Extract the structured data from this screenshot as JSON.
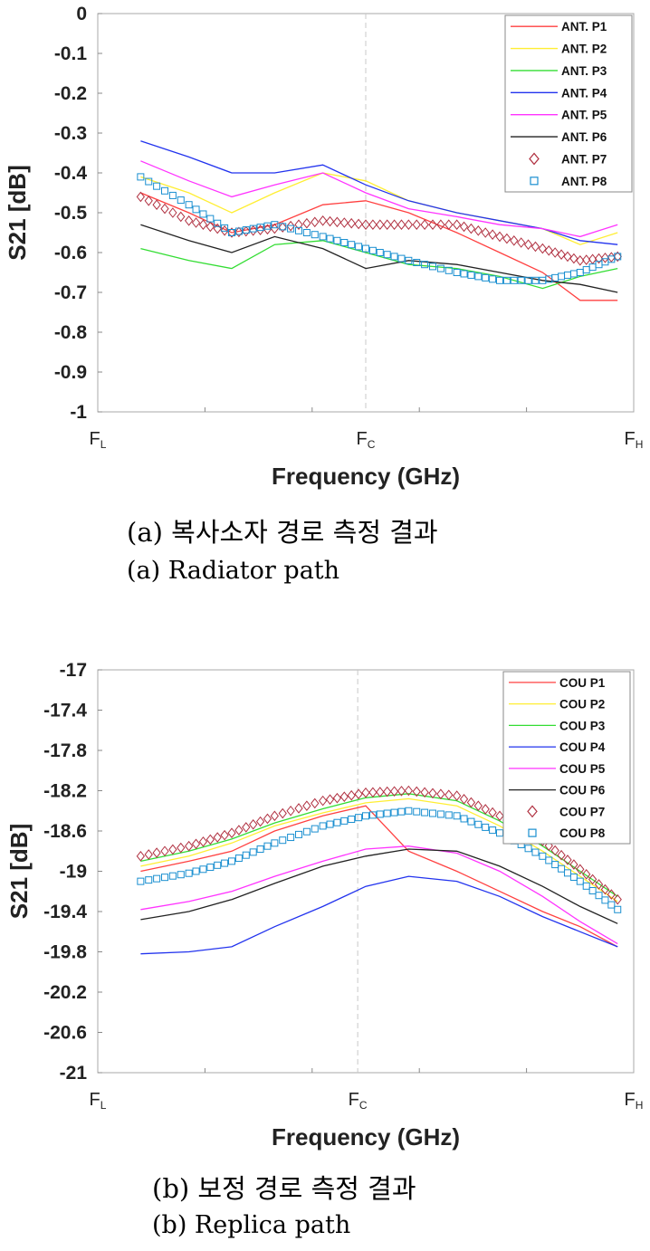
{
  "captions": {
    "a_korean": "(a)  복사소자  경로  측정  결과",
    "a_english": "(a)  Radiator  path",
    "b_korean": "(b)  보정  경로  측정  결과",
    "b_english": "(b)  Replica  path"
  },
  "chart_data": [
    {
      "type": "line",
      "title": "",
      "xlabel": "Frequency (GHz)",
      "ylabel": "S21 [dB]",
      "xticks": [
        {
          "main": "F",
          "sub": "L"
        },
        {
          "main": "F",
          "sub": "C"
        },
        {
          "main": "F",
          "sub": "H"
        }
      ],
      "x": [
        0.08,
        0.17,
        0.25,
        0.33,
        0.42,
        0.5,
        0.58,
        0.67,
        0.75,
        0.83,
        0.9,
        0.97
      ],
      "xlim": [
        0,
        1
      ],
      "ylim": [
        -1,
        0
      ],
      "yticks": [
        "0",
        "-0.1",
        "-0.2",
        "-0.3",
        "-0.4",
        "-0.5",
        "-0.6",
        "-0.7",
        "-0.8",
        "-0.9",
        "-1"
      ],
      "ytick_values": [
        0,
        -0.1,
        -0.2,
        -0.3,
        -0.4,
        -0.5,
        -0.6,
        -0.7,
        -0.8,
        -0.9,
        -1
      ],
      "grid": "vertical dashed at Fc",
      "fc_x": 0.5,
      "legend_position": "top-right",
      "series": [
        {
          "name": "ANT. P1",
          "color": "#ff4040",
          "marker": "none",
          "values": [
            -0.45,
            -0.5,
            -0.55,
            -0.53,
            -0.48,
            -0.47,
            -0.5,
            -0.55,
            -0.6,
            -0.65,
            -0.72,
            -0.72
          ]
        },
        {
          "name": "ANT. P2",
          "color": "#ffee33",
          "marker": "none",
          "values": [
            -0.41,
            -0.45,
            -0.5,
            -0.45,
            -0.4,
            -0.42,
            -0.47,
            -0.5,
            -0.52,
            -0.54,
            -0.58,
            -0.55
          ]
        },
        {
          "name": "ANT. P3",
          "color": "#33dd33",
          "marker": "none",
          "values": [
            -0.59,
            -0.62,
            -0.64,
            -0.58,
            -0.57,
            -0.6,
            -0.63,
            -0.64,
            -0.66,
            -0.69,
            -0.66,
            -0.64
          ]
        },
        {
          "name": "ANT. P4",
          "color": "#2233ee",
          "marker": "none",
          "values": [
            -0.32,
            -0.36,
            -0.4,
            -0.4,
            -0.38,
            -0.43,
            -0.47,
            -0.5,
            -0.52,
            -0.54,
            -0.57,
            -0.58
          ]
        },
        {
          "name": "ANT. P5",
          "color": "#ff33ff",
          "marker": "none",
          "values": [
            -0.37,
            -0.42,
            -0.46,
            -0.43,
            -0.4,
            -0.45,
            -0.49,
            -0.51,
            -0.53,
            -0.54,
            -0.56,
            -0.53
          ]
        },
        {
          "name": "ANT. P6",
          "color": "#222222",
          "marker": "none",
          "values": [
            -0.53,
            -0.57,
            -0.6,
            -0.56,
            -0.59,
            -0.64,
            -0.62,
            -0.63,
            -0.65,
            -0.67,
            -0.68,
            -0.7
          ]
        },
        {
          "name": "ANT. P7",
          "color": "#b03040",
          "marker": "diamond",
          "values": [
            -0.46,
            -0.52,
            -0.55,
            -0.54,
            -0.52,
            -0.53,
            -0.53,
            -0.53,
            -0.56,
            -0.59,
            -0.62,
            -0.61
          ]
        },
        {
          "name": "ANT. P8",
          "color": "#1a8fd0",
          "marker": "square",
          "values": [
            -0.41,
            -0.48,
            -0.55,
            -0.53,
            -0.56,
            -0.59,
            -0.62,
            -0.65,
            -0.67,
            -0.67,
            -0.65,
            -0.61
          ]
        }
      ]
    },
    {
      "type": "line",
      "title": "",
      "xlabel": "Frequency (GHz)",
      "ylabel": "S21 [dB]",
      "xticks": [
        {
          "main": "F",
          "sub": "L"
        },
        {
          "main": "F",
          "sub": "C"
        },
        {
          "main": "F",
          "sub": "H"
        }
      ],
      "x": [
        0.08,
        0.17,
        0.25,
        0.33,
        0.42,
        0.5,
        0.58,
        0.67,
        0.75,
        0.83,
        0.9,
        0.97
      ],
      "xlim": [
        0,
        1
      ],
      "ylim": [
        -21,
        -17
      ],
      "yticks": [
        "-17",
        "-17.4",
        "-17.8",
        "-18.2",
        "-18.6",
        "-19",
        "-19.4",
        "-19.8",
        "-20.2",
        "-20.6",
        "-21"
      ],
      "ytick_values": [
        -17,
        -17.4,
        -17.8,
        -18.2,
        -18.6,
        -19,
        -19.4,
        -19.8,
        -20.2,
        -20.6,
        -21
      ],
      "grid": "vertical dashed at Fc",
      "fc_x": 0.485,
      "legend_position": "top-right",
      "series": [
        {
          "name": "COU P1",
          "color": "#ff4040",
          "marker": "none",
          "values": [
            -19.0,
            -18.9,
            -18.8,
            -18.6,
            -18.45,
            -18.35,
            -18.8,
            -19.0,
            -19.2,
            -19.4,
            -19.55,
            -19.75
          ]
        },
        {
          "name": "COU P2",
          "color": "#ffee33",
          "marker": "none",
          "values": [
            -18.95,
            -18.85,
            -18.72,
            -18.55,
            -18.42,
            -18.32,
            -18.28,
            -18.35,
            -18.55,
            -18.8,
            -19.05,
            -19.3
          ]
        },
        {
          "name": "COU P3",
          "color": "#33dd33",
          "marker": "none",
          "values": [
            -18.9,
            -18.8,
            -18.68,
            -18.52,
            -18.38,
            -18.27,
            -18.23,
            -18.3,
            -18.5,
            -18.75,
            -19.0,
            -19.25
          ]
        },
        {
          "name": "COU P4",
          "color": "#2233ee",
          "marker": "none",
          "values": [
            -19.82,
            -19.8,
            -19.75,
            -19.55,
            -19.35,
            -19.15,
            -19.05,
            -19.1,
            -19.25,
            -19.45,
            -19.6,
            -19.75
          ]
        },
        {
          "name": "COU P5",
          "color": "#ff33ff",
          "marker": "none",
          "values": [
            -19.38,
            -19.3,
            -19.2,
            -19.05,
            -18.9,
            -18.78,
            -18.75,
            -18.82,
            -19.0,
            -19.25,
            -19.5,
            -19.72
          ]
        },
        {
          "name": "COU P6",
          "color": "#222222",
          "marker": "none",
          "values": [
            -19.48,
            -19.4,
            -19.28,
            -19.12,
            -18.95,
            -18.85,
            -18.78,
            -18.8,
            -18.95,
            -19.15,
            -19.35,
            -19.52
          ]
        },
        {
          "name": "COU P7",
          "color": "#b03040",
          "marker": "diamond",
          "values": [
            -18.85,
            -18.75,
            -18.62,
            -18.45,
            -18.3,
            -18.22,
            -18.2,
            -18.25,
            -18.45,
            -18.7,
            -18.98,
            -19.28
          ]
        },
        {
          "name": "COU P8",
          "color": "#1a8fd0",
          "marker": "square",
          "values": [
            -19.1,
            -19.02,
            -18.9,
            -18.72,
            -18.55,
            -18.45,
            -18.4,
            -18.45,
            -18.62,
            -18.85,
            -19.1,
            -19.38
          ]
        }
      ]
    }
  ]
}
